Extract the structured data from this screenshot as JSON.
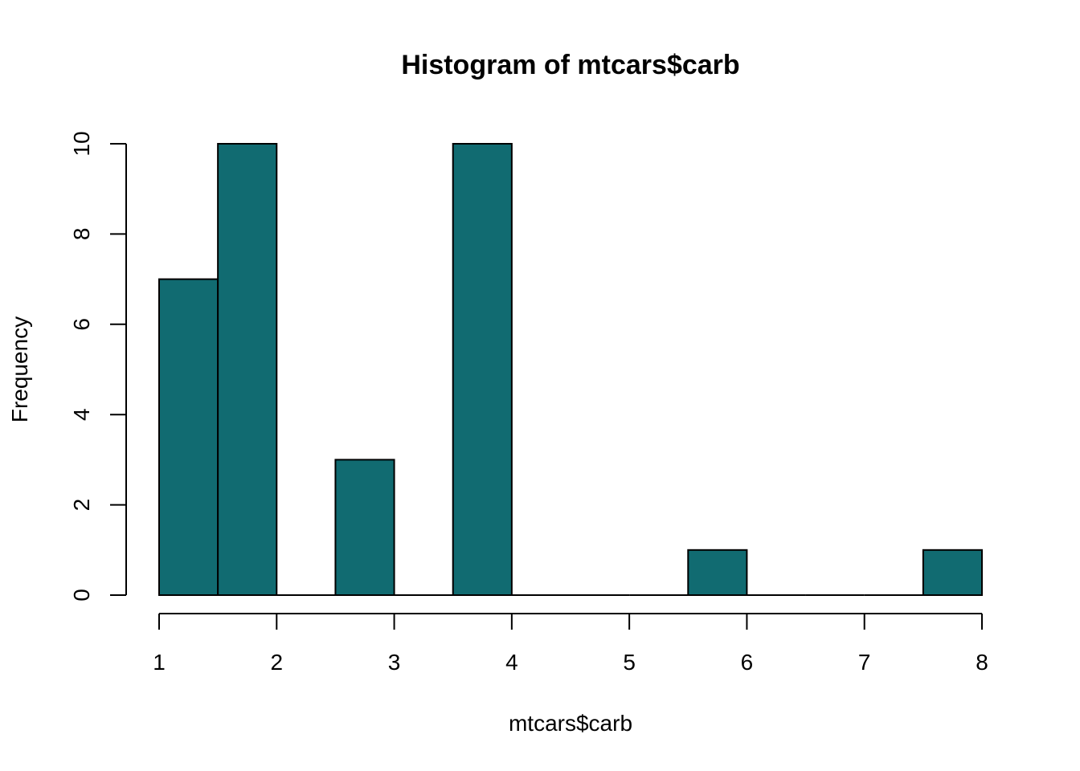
{
  "chart_data": {
    "type": "bar",
    "title": "Histogram of mtcars$carb",
    "xlabel": "mtcars$carb",
    "ylabel": "Frequency",
    "bins": [
      {
        "start": 1.0,
        "end": 1.5,
        "count": 7
      },
      {
        "start": 1.5,
        "end": 2.0,
        "count": 10
      },
      {
        "start": 2.0,
        "end": 2.5,
        "count": 0
      },
      {
        "start": 2.5,
        "end": 3.0,
        "count": 3
      },
      {
        "start": 3.0,
        "end": 3.5,
        "count": 0
      },
      {
        "start": 3.5,
        "end": 4.0,
        "count": 10
      },
      {
        "start": 4.0,
        "end": 4.5,
        "count": 0
      },
      {
        "start": 4.5,
        "end": 5.0,
        "count": 0
      },
      {
        "start": 5.0,
        "end": 5.5,
        "count": 0
      },
      {
        "start": 5.5,
        "end": 6.0,
        "count": 1
      },
      {
        "start": 6.0,
        "end": 6.5,
        "count": 0
      },
      {
        "start": 6.5,
        "end": 7.0,
        "count": 0
      },
      {
        "start": 7.0,
        "end": 7.5,
        "count": 0
      },
      {
        "start": 7.5,
        "end": 8.0,
        "count": 1
      }
    ],
    "xlim": [
      1,
      8
    ],
    "ylim": [
      0,
      10
    ],
    "x_ticks": [
      "1",
      "2",
      "3",
      "4",
      "5",
      "6",
      "7",
      "8"
    ],
    "y_ticks": [
      "0",
      "2",
      "4",
      "6",
      "8",
      "10"
    ],
    "bar_color": "#116b71",
    "grid": false,
    "legend": "none"
  }
}
